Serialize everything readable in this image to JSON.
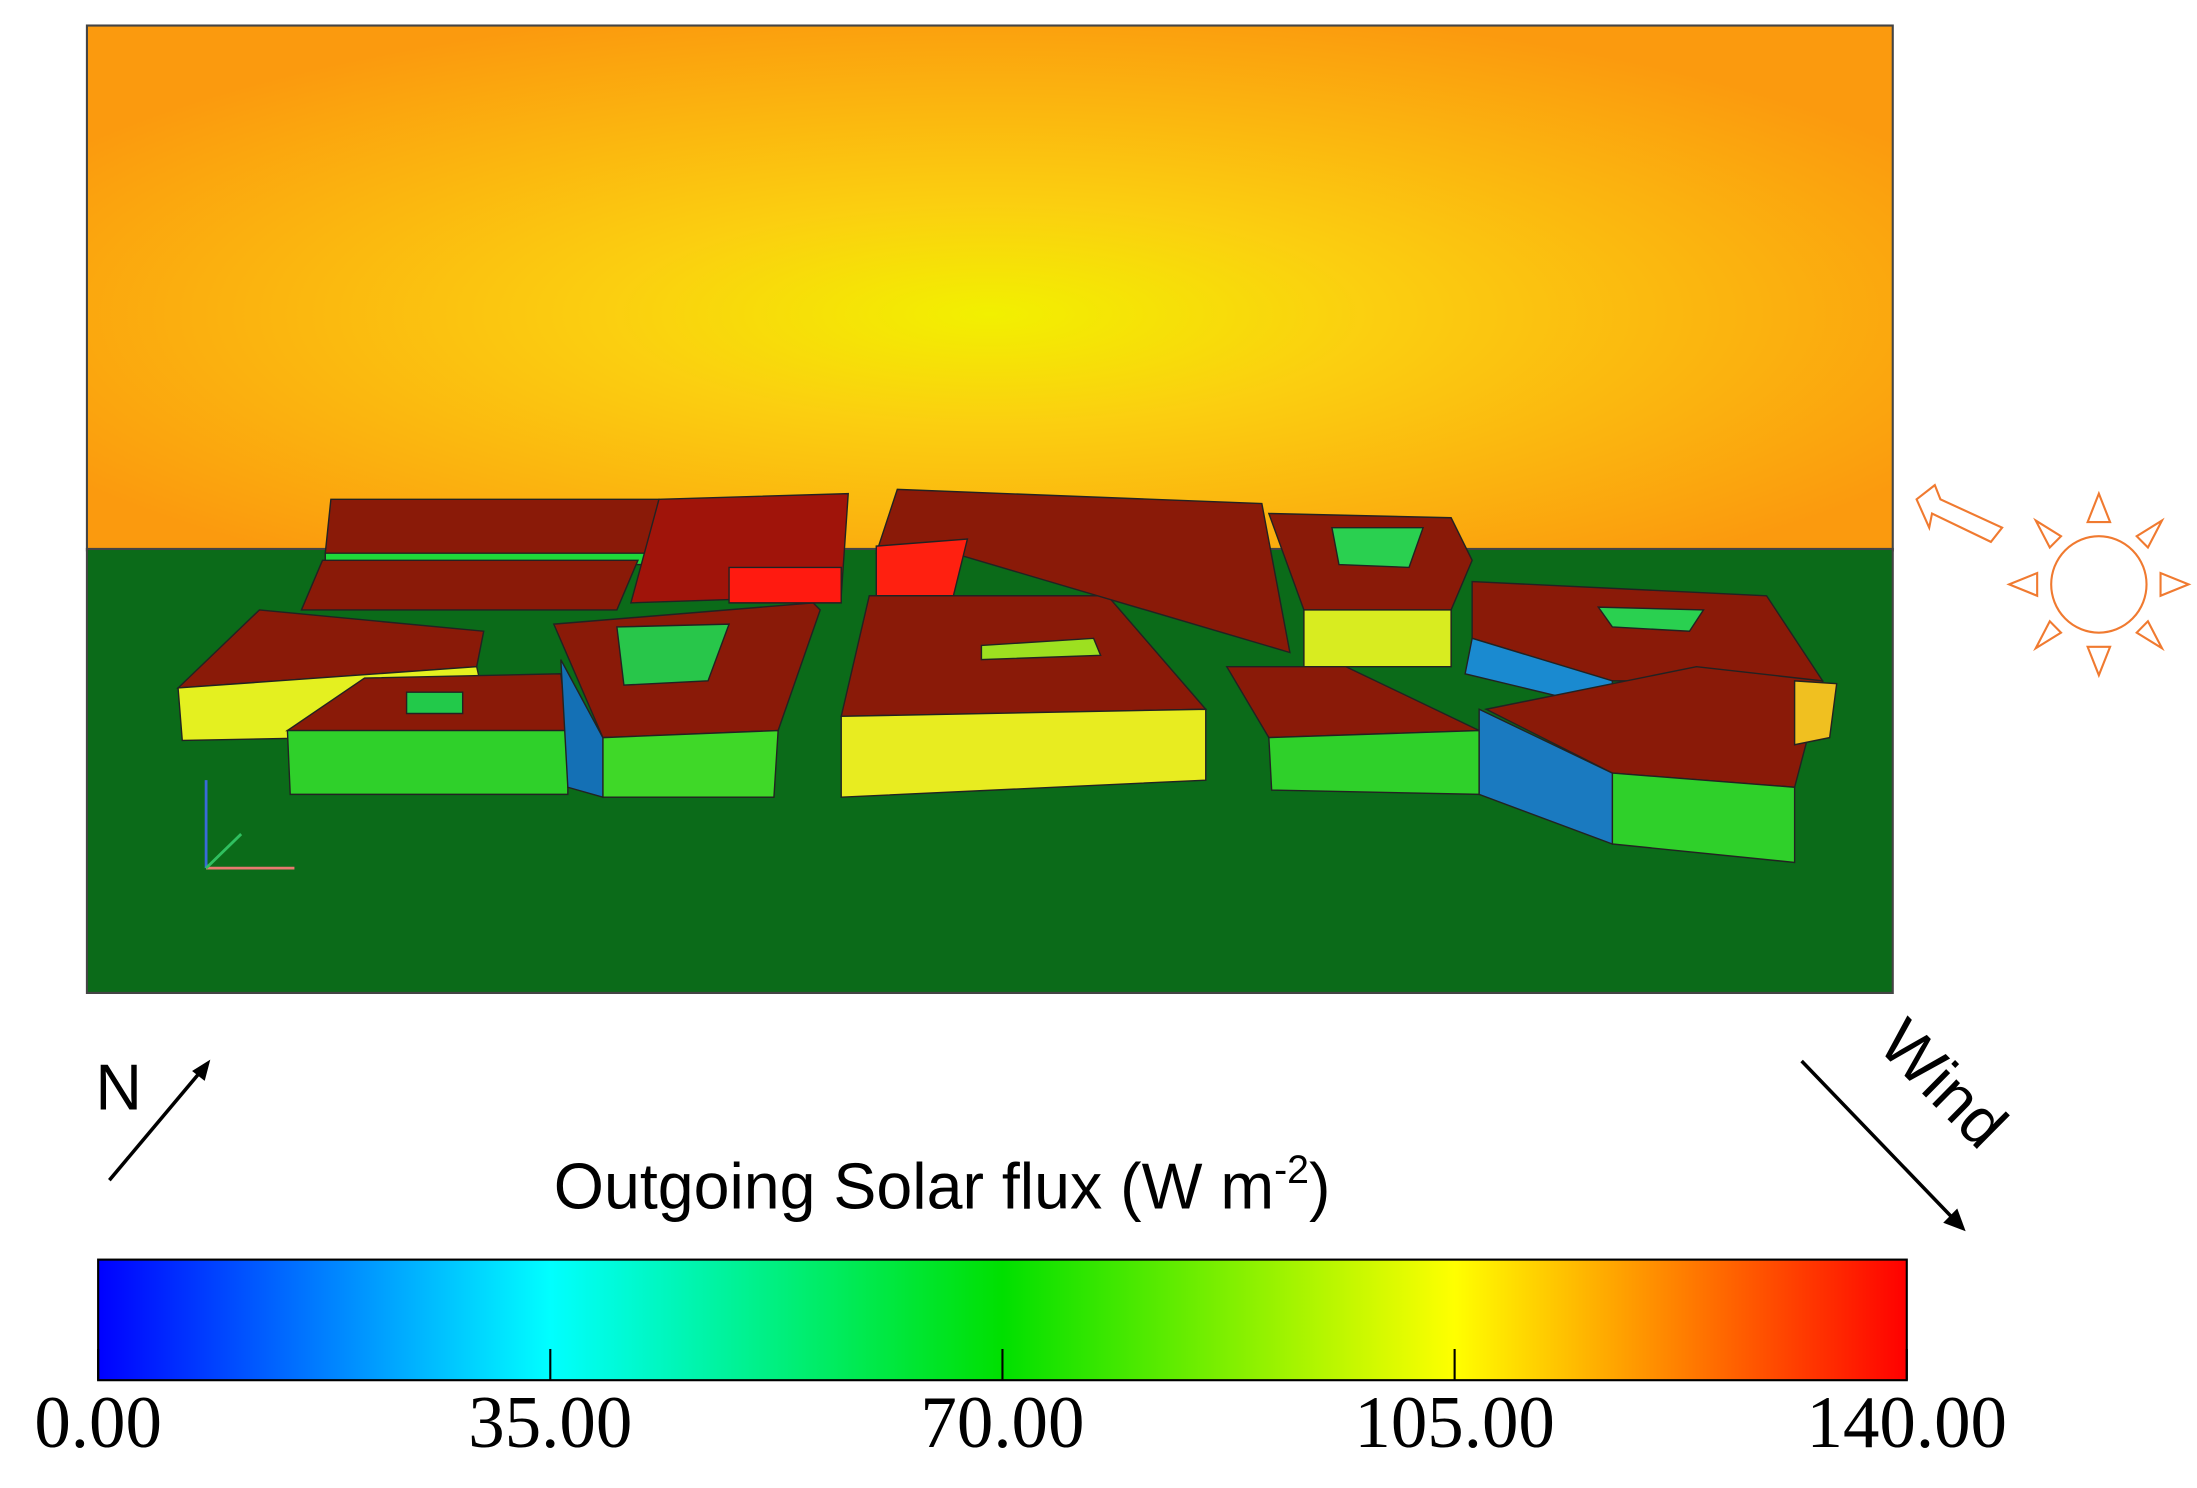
{
  "figure": {
    "colorbar": {
      "title": "Outgoing Solar flux (W m",
      "title_superscript": "-2",
      "title_end": ")",
      "lim": [
        0,
        140
      ],
      "ticks": [
        {
          "value": 0,
          "label": "0.00"
        },
        {
          "value": 35,
          "label": "35.00"
        },
        {
          "value": 70,
          "label": "70.00"
        },
        {
          "value": 105,
          "label": "105.00"
        },
        {
          "value": 140,
          "label": "140.00"
        }
      ],
      "colormap": [
        "#0000ff",
        "#00ffff",
        "#00e000",
        "#ffff00",
        "#ff0000"
      ]
    },
    "north_label": "N",
    "wind_label": "Wind"
  }
}
